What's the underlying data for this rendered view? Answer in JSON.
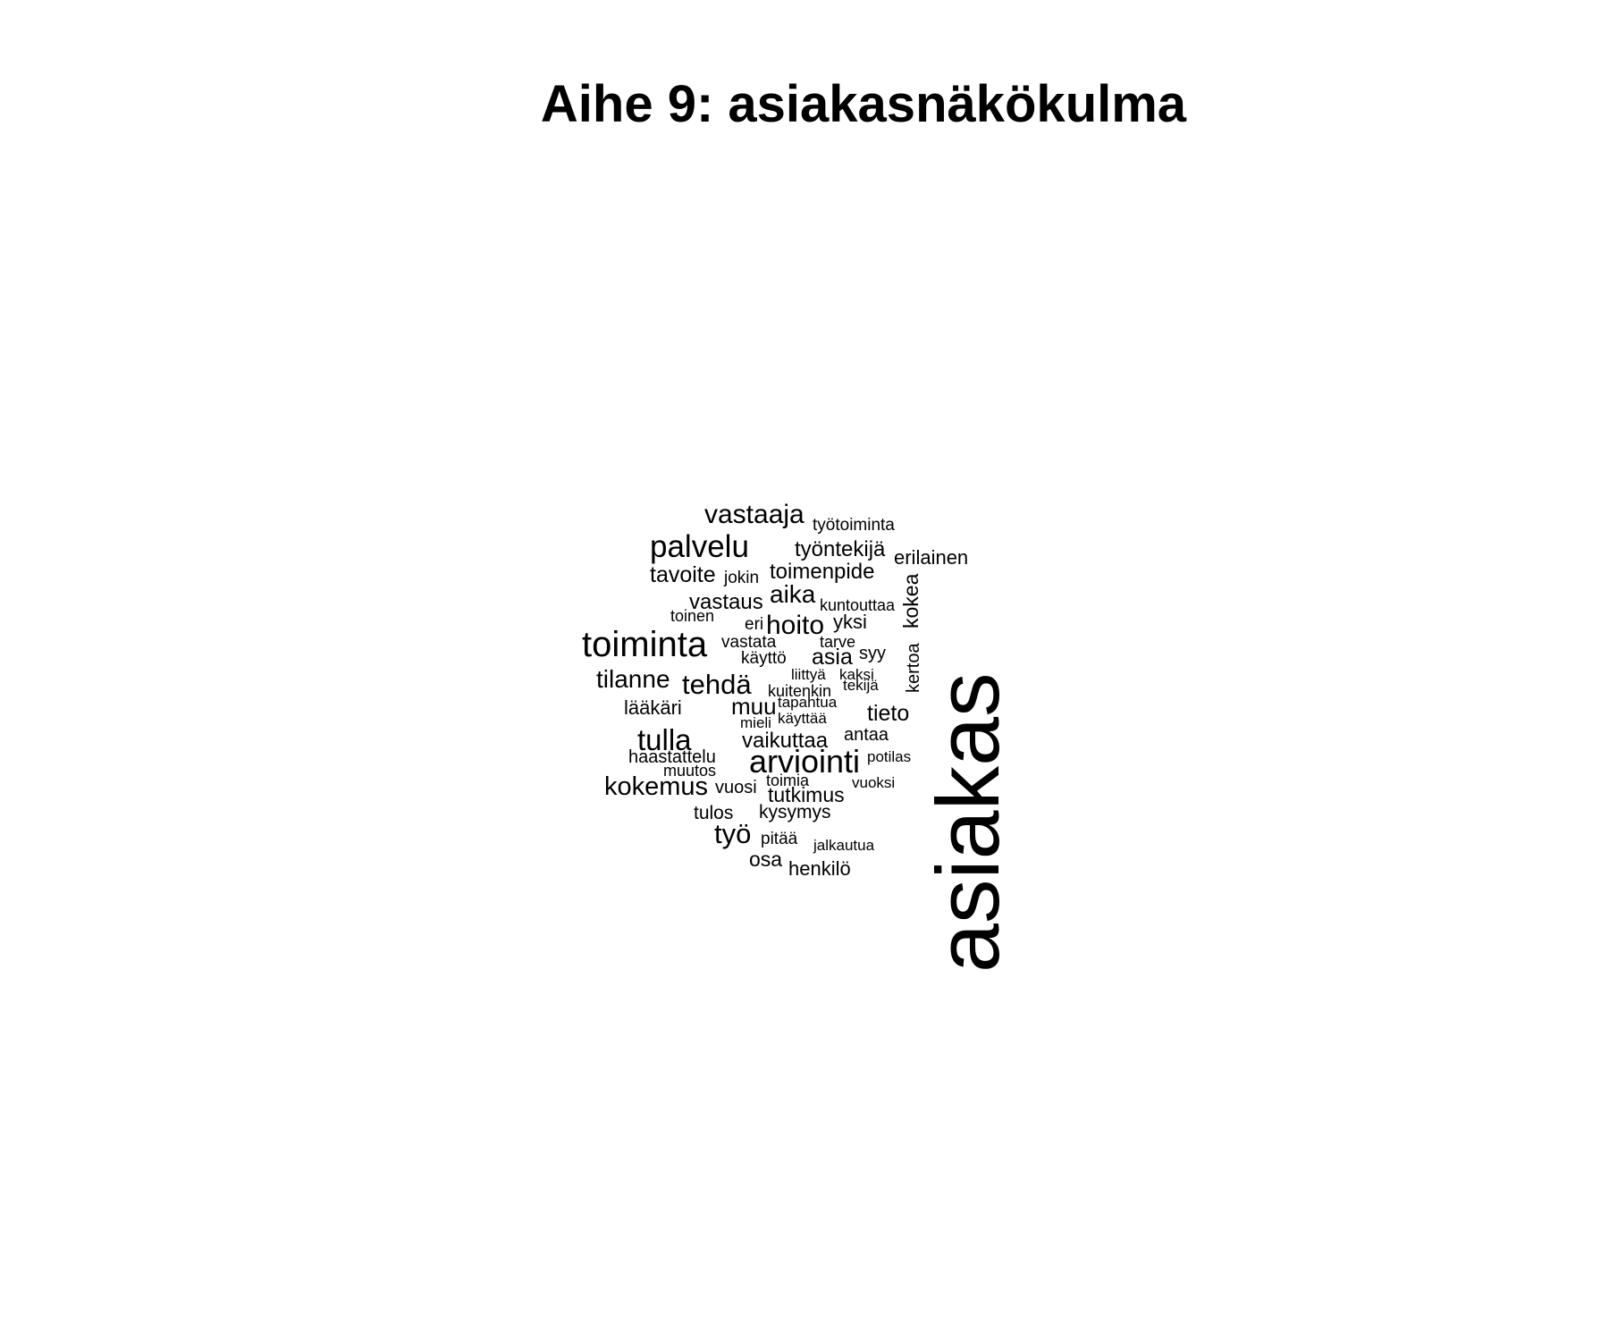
{
  "title": "Aihe 9: asiakasnäkökulma",
  "words": [
    "asiakas",
    "vastaaja",
    "työtoiminta",
    "palvelu",
    "työntekijä",
    "erilainen",
    "tavoite",
    "jokin",
    "toimenpide",
    "kokea",
    "vastaus",
    "aika",
    "kuntouttaa",
    "toinen",
    "eri",
    "hoito",
    "yksi",
    "toiminta",
    "vastata",
    "tarve",
    "käyttö",
    "asia",
    "syy",
    "kertoa",
    "tilanne",
    "tehdä",
    "liittyä",
    "kaksi",
    "kuitenkin",
    "tekijä",
    "lääkäri",
    "muu",
    "tapahtua",
    "käyttää",
    "tieto",
    "mieli",
    "tulla",
    "vaikuttaa",
    "antaa",
    "haastattelu",
    "arviointi",
    "potilas",
    "muutos",
    "toimia",
    "kokemus",
    "vuosi",
    "vuoksi",
    "tutkimus",
    "tulos",
    "kysymys",
    "työ",
    "pitää",
    "jalkautua",
    "osa",
    "henkilö"
  ],
  "colors": {
    "text": "#000000",
    "background": "#ffffff"
  }
}
